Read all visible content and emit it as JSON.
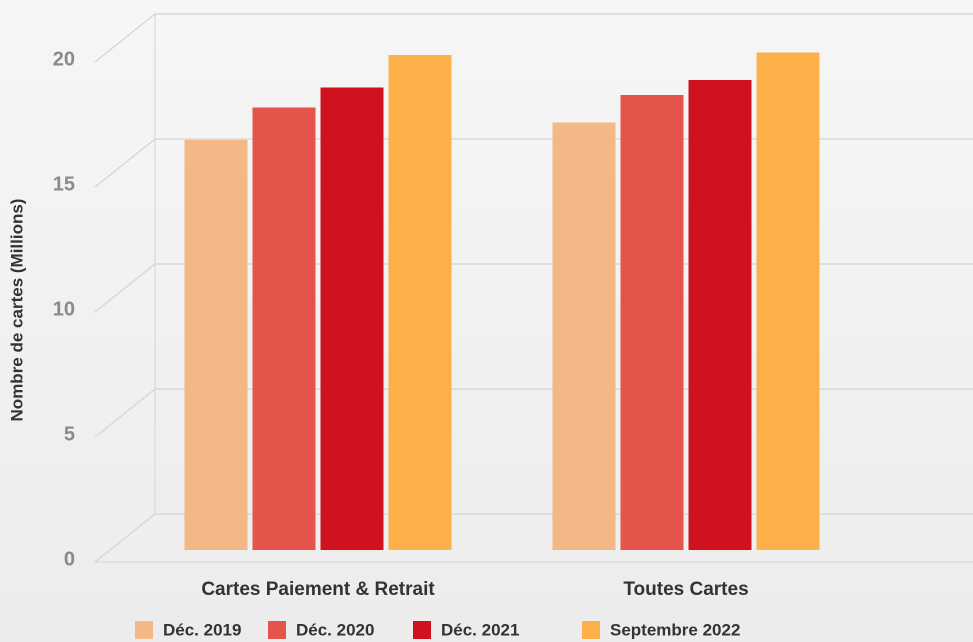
{
  "chart_data": {
    "type": "bar",
    "y_label": "Nombre de cartes (Millions)",
    "categories": [
      "Cartes Paiement & Retrait",
      "Toutes Cartes"
    ],
    "series": [
      {
        "name": "Déc. 2019",
        "color": "#f2b885",
        "values": [
          16.4,
          17.1
        ]
      },
      {
        "name": "Déc. 2020",
        "color": "#e5544a",
        "values": [
          17.7,
          18.2
        ]
      },
      {
        "name": "Déc. 2021",
        "color": "#d0121f",
        "values": [
          18.5,
          18.8
        ]
      },
      {
        "name": "Septembre 2022",
        "color": "#fbb04a",
        "values": [
          19.8,
          19.9
        ]
      }
    ],
    "ylim": [
      0,
      20
    ],
    "yticks": [
      0,
      5,
      10,
      15,
      20
    ],
    "grid": true
  }
}
